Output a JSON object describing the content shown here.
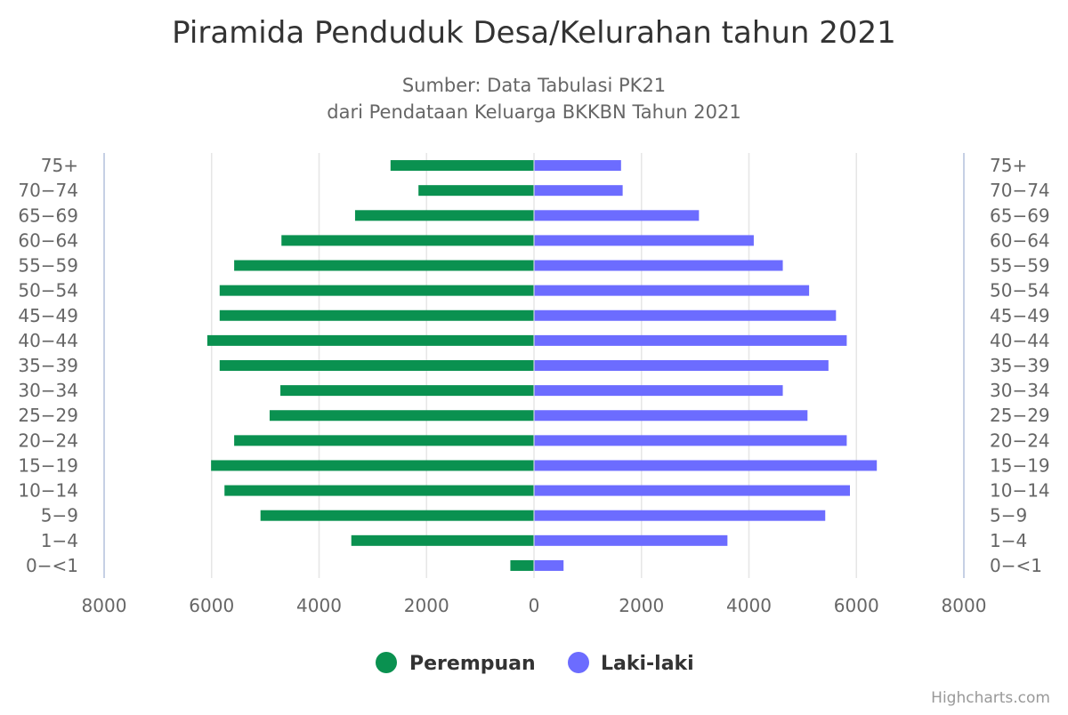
{
  "chart_data": {
    "type": "bar",
    "title": "Piramida Penduduk Desa/Kelurahan tahun 2021",
    "subtitle_lines": [
      "Sumber: Data Tabulasi PK21",
      "dari Pendataan Keluarga BKKBN Tahun 2021"
    ],
    "categories": [
      "75+",
      "70-74",
      "65-69",
      "60-64",
      "55-59",
      "50-54",
      "45-49",
      "40-44",
      "35-39",
      "30-34",
      "25-29",
      "20-24",
      "15-19",
      "10-14",
      "5-9",
      "1-4",
      "0-<1"
    ],
    "category_labels": [
      "75+",
      "70−74",
      "65−69",
      "60−64",
      "55−59",
      "50−54",
      "45−49",
      "40−44",
      "35−39",
      "30−34",
      "25−29",
      "20−24",
      "15−19",
      "10−14",
      "5−9",
      "1−4",
      "0−<1"
    ],
    "series": [
      {
        "name": "Perempuan",
        "color": "#0a9150",
        "side": "left",
        "values": [
          2670,
          2150,
          3330,
          4700,
          5580,
          5850,
          5850,
          6080,
          5850,
          4720,
          4920,
          5580,
          6010,
          5760,
          5090,
          3400,
          440
        ]
      },
      {
        "name": "Laki-laki",
        "color": "#6c6cff",
        "side": "right",
        "values": [
          1620,
          1650,
          3070,
          4090,
          4630,
          5120,
          5620,
          5820,
          5480,
          4630,
          5090,
          5820,
          6380,
          5880,
          5420,
          3600,
          550
        ]
      }
    ],
    "xlim": [
      -8000,
      8000
    ],
    "x_ticks": [
      -8000,
      -6000,
      -4000,
      -2000,
      0,
      2000,
      4000,
      6000,
      8000
    ],
    "x_tick_labels": [
      "8000",
      "6000",
      "4000",
      "2000",
      "0",
      "2000",
      "4000",
      "6000",
      "8000"
    ],
    "grid": true,
    "legend_position": "bottom-center",
    "credits": "Highcharts.com"
  }
}
